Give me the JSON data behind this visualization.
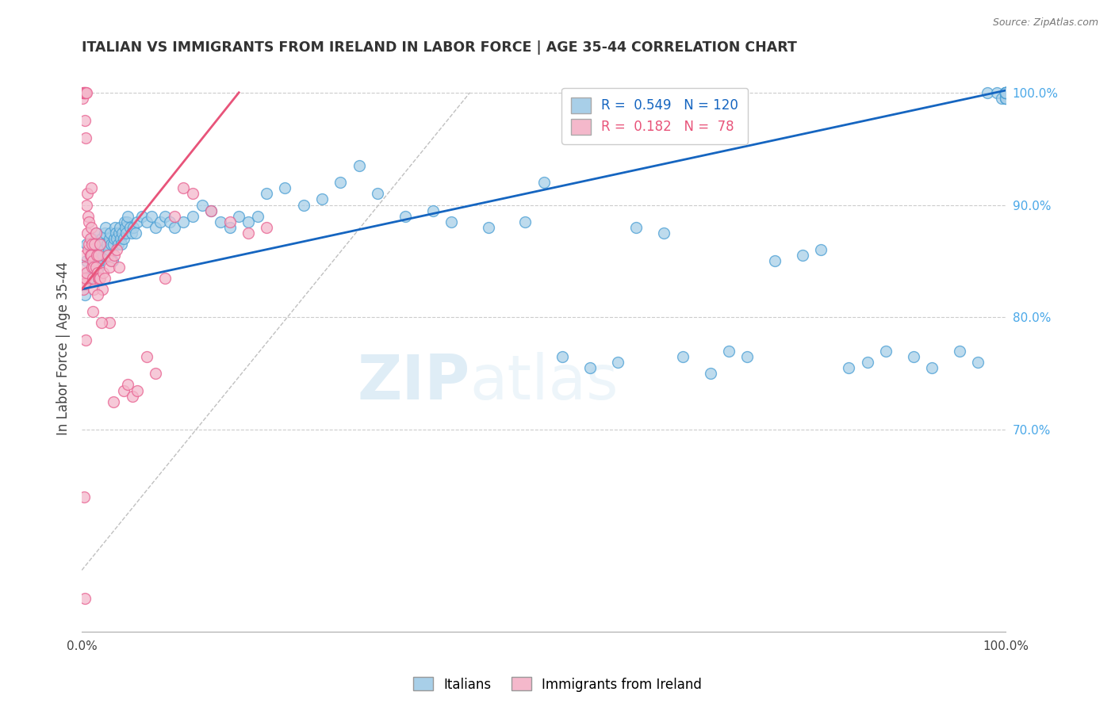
{
  "title": "ITALIAN VS IMMIGRANTS FROM IRELAND IN LABOR FORCE | AGE 35-44 CORRELATION CHART",
  "source": "Source: ZipAtlas.com",
  "ylabel_label": "In Labor Force | Age 35-44",
  "right_yticks": [
    70.0,
    80.0,
    90.0,
    100.0
  ],
  "blue_R": 0.549,
  "blue_N": 120,
  "pink_R": 0.182,
  "pink_N": 78,
  "blue_color": "#a8cfe8",
  "pink_color": "#f4b8cb",
  "blue_edge_color": "#4a9fd4",
  "pink_edge_color": "#e86090",
  "blue_line_color": "#1565c0",
  "pink_line_color": "#e8547a",
  "legend_label_blue": "Italians",
  "legend_label_pink": "Immigrants from Ireland",
  "blue_scatter_x": [
    0.3,
    0.5,
    0.5,
    0.7,
    0.8,
    0.9,
    1.0,
    1.1,
    1.2,
    1.3,
    1.4,
    1.5,
    1.6,
    1.7,
    1.8,
    1.9,
    2.0,
    2.1,
    2.2,
    2.3,
    2.4,
    2.5,
    2.6,
    2.7,
    2.8,
    2.9,
    3.0,
    3.1,
    3.2,
    3.3,
    3.4,
    3.5,
    3.6,
    3.7,
    3.8,
    3.9,
    4.0,
    4.1,
    4.2,
    4.3,
    4.4,
    4.5,
    4.6,
    4.7,
    4.8,
    4.9,
    5.0,
    5.2,
    5.4,
    5.6,
    5.8,
    6.0,
    6.5,
    7.0,
    7.5,
    8.0,
    8.5,
    9.0,
    9.5,
    10.0,
    11.0,
    12.0,
    13.0,
    14.0,
    15.0,
    16.0,
    17.0,
    18.0,
    19.0,
    20.0,
    22.0,
    24.0,
    26.0,
    28.0,
    30.0,
    32.0,
    35.0,
    38.0,
    40.0,
    44.0,
    48.0,
    50.0,
    52.0,
    55.0,
    58.0,
    60.0,
    63.0,
    65.0,
    68.0,
    70.0,
    72.0,
    75.0,
    78.0,
    80.0,
    83.0,
    85.0,
    87.0,
    90.0,
    92.0,
    95.0,
    97.0,
    98.0,
    99.0,
    99.5,
    100.0,
    100.0,
    100.0,
    100.0,
    100.0,
    100.0,
    100.0,
    100.0,
    100.0,
    100.0,
    100.0,
    100.0,
    100.0,
    100.0,
    100.0,
    100.0
  ],
  "blue_scatter_y": [
    82.0,
    85.0,
    86.5,
    84.0,
    83.5,
    85.5,
    86.0,
    87.0,
    84.5,
    85.5,
    86.5,
    87.5,
    86.0,
    85.0,
    84.5,
    85.0,
    86.0,
    87.0,
    86.5,
    85.5,
    86.0,
    87.5,
    88.0,
    86.5,
    85.5,
    86.0,
    87.0,
    87.5,
    86.5,
    85.0,
    86.5,
    87.0,
    88.0,
    87.5,
    87.0,
    86.5,
    87.5,
    88.0,
    87.0,
    86.5,
    87.5,
    87.0,
    88.5,
    88.0,
    87.5,
    88.5,
    89.0,
    88.0,
    87.5,
    88.0,
    87.5,
    88.5,
    89.0,
    88.5,
    89.0,
    88.0,
    88.5,
    89.0,
    88.5,
    88.0,
    88.5,
    89.0,
    90.0,
    89.5,
    88.5,
    88.0,
    89.0,
    88.5,
    89.0,
    91.0,
    91.5,
    90.0,
    90.5,
    92.0,
    93.5,
    91.0,
    89.0,
    89.5,
    88.5,
    88.0,
    88.5,
    92.0,
    76.5,
    75.5,
    76.0,
    88.0,
    87.5,
    76.5,
    75.0,
    77.0,
    76.5,
    85.0,
    85.5,
    86.0,
    75.5,
    76.0,
    77.0,
    76.5,
    75.5,
    77.0,
    76.0,
    100.0,
    100.0,
    99.5,
    100.0,
    100.0,
    100.0,
    100.0,
    99.5,
    100.0,
    100.0,
    100.0,
    99.5,
    100.0,
    100.0,
    99.5,
    100.0,
    100.0,
    100.0,
    100.0
  ],
  "pink_scatter_x": [
    0.1,
    0.1,
    0.15,
    0.15,
    0.2,
    0.2,
    0.25,
    0.25,
    0.3,
    0.3,
    0.3,
    0.35,
    0.35,
    0.4,
    0.4,
    0.4,
    0.5,
    0.5,
    0.5,
    0.6,
    0.6,
    0.7,
    0.7,
    0.8,
    0.8,
    0.9,
    0.9,
    1.0,
    1.0,
    1.0,
    1.1,
    1.1,
    1.2,
    1.2,
    1.3,
    1.3,
    1.4,
    1.5,
    1.5,
    1.6,
    1.7,
    1.8,
    1.8,
    1.9,
    2.0,
    2.0,
    2.2,
    2.3,
    2.5,
    2.8,
    3.0,
    3.2,
    3.5,
    3.8,
    4.0,
    4.5,
    5.0,
    5.5,
    6.0,
    7.0,
    8.0,
    9.0,
    10.0,
    11.0,
    12.0,
    14.0,
    16.0,
    18.0,
    20.0,
    3.0,
    0.35,
    0.45,
    3.4,
    0.25,
    1.2,
    1.7,
    2.1
  ],
  "pink_scatter_y": [
    83.5,
    99.5,
    82.5,
    100.0,
    83.0,
    100.0,
    84.5,
    100.0,
    83.0,
    97.5,
    100.0,
    85.5,
    100.0,
    83.5,
    96.0,
    100.0,
    84.0,
    90.0,
    100.0,
    87.5,
    91.0,
    86.0,
    89.0,
    86.5,
    88.5,
    85.5,
    87.0,
    85.5,
    88.0,
    91.5,
    84.5,
    86.5,
    83.5,
    85.0,
    82.5,
    84.5,
    86.5,
    84.5,
    87.5,
    85.5,
    84.0,
    83.5,
    85.5,
    83.5,
    83.5,
    86.5,
    82.5,
    84.0,
    83.5,
    85.5,
    84.5,
    85.0,
    85.5,
    86.0,
    84.5,
    73.5,
    74.0,
    73.0,
    73.5,
    76.5,
    75.0,
    83.5,
    89.0,
    91.5,
    91.0,
    89.5,
    88.5,
    87.5,
    88.0,
    79.5,
    55.0,
    78.0,
    72.5,
    64.0,
    80.5,
    82.0,
    79.5
  ],
  "xmin": 0.0,
  "xmax": 100.0,
  "ymin": 52.0,
  "ymax": 102.5,
  "blue_line_x0": 0.0,
  "blue_line_y0": 82.5,
  "blue_line_x1": 100.0,
  "blue_line_y1": 100.2,
  "pink_line_x0": 0.0,
  "pink_line_y0": 82.5,
  "pink_line_x1": 17.0,
  "pink_line_y1": 100.0,
  "ref_line_x0": 0.0,
  "ref_line_y0": 57.5,
  "ref_line_x1": 42.0,
  "ref_line_y1": 100.0,
  "watermark_zip": "ZIP",
  "watermark_atlas": "atlas",
  "marker_size": 100
}
